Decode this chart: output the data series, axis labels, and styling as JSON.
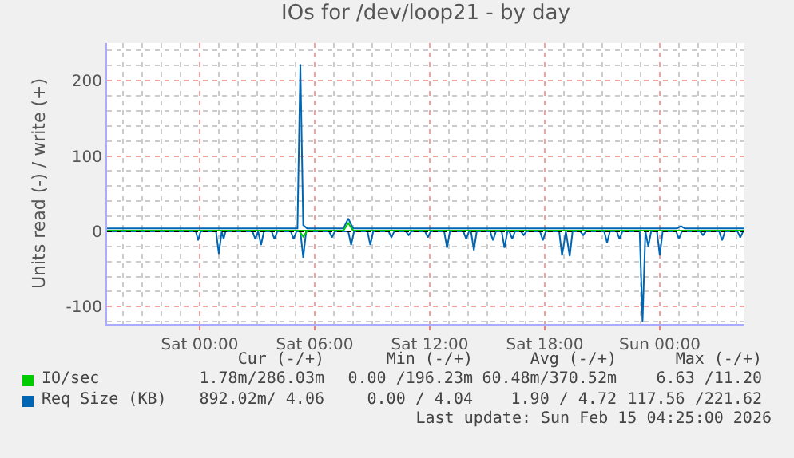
{
  "chart_data": {
    "type": "line",
    "title": "IOs for /dev/loop21 - by day",
    "ylabel": "Units read (-) / write (+)",
    "xlim": [
      "2026-02-13T19:10",
      "2026-02-15T04:25"
    ],
    "xticks": [
      {
        "value": "2026-02-14T00:00",
        "label": "Sat 00:00"
      },
      {
        "value": "2026-02-14T06:00",
        "label": "Sat 06:00"
      },
      {
        "value": "2026-02-14T12:00",
        "label": "Sat 12:00"
      },
      {
        "value": "2026-02-14T18:00",
        "label": "Sat 18:00"
      },
      {
        "value": "2026-02-15T00:00",
        "label": "Sun 00:00"
      }
    ],
    "ylim": [
      -123,
      250
    ],
    "yticks": [
      -100,
      0,
      100,
      200
    ],
    "grid": true,
    "legend": "bottom",
    "line_style": "solid",
    "marker": "none",
    "ref_lines": [
      {
        "axis": "y",
        "value": 0,
        "color": "#000000",
        "line_style": "dotted"
      }
    ],
    "series": [
      {
        "name": "IO/sec",
        "color": "#00cc00",
        "x": [
          "2026-02-13T19:10",
          "2026-02-14T07:30",
          "2026-02-14T07:45",
          "2026-02-14T08:00",
          "2026-02-15T04:25"
        ],
        "values": [
          1,
          1,
          11,
          1,
          1
        ]
      },
      {
        "color": "#00cc00",
        "x": [
          "2026-02-14T05:12",
          "2026-02-14T05:24",
          "2026-02-14T05:36"
        ],
        "values": [
          0,
          -7,
          0
        ]
      },
      {
        "name": "Req Size (KB)",
        "color": "#0066b3",
        "x": [
          "2026-02-13T19:10",
          "2026-02-14T05:06",
          "2026-02-14T05:15",
          "2026-02-14T05:24",
          "2026-02-14T05:36",
          "2026-02-14T07:30",
          "2026-02-14T07:45",
          "2026-02-14T08:00",
          "2026-02-15T00:54",
          "2026-02-15T01:06",
          "2026-02-15T01:18",
          "2026-02-15T04:25"
        ],
        "values": [
          4,
          4,
          222,
          8,
          4,
          4,
          17,
          4,
          4,
          7,
          4,
          4
        ]
      },
      {
        "color": "#0066b3",
        "x": [
          "2026-02-13T19:10",
          "2026-02-13T23:48",
          "2026-02-13T23:55",
          "2026-02-14T00:03",
          "2026-02-14T00:51",
          "2026-02-14T01:00",
          "2026-02-14T01:09",
          "2026-02-14T01:15",
          "2026-02-14T01:21",
          "2026-02-14T02:45",
          "2026-02-14T02:54",
          "2026-02-14T03:03",
          "2026-02-14T03:12",
          "2026-02-14T03:21",
          "2026-02-14T03:45",
          "2026-02-14T03:54",
          "2026-02-14T04:03",
          "2026-02-14T04:45",
          "2026-02-14T04:54",
          "2026-02-14T05:03",
          "2026-02-14T05:15",
          "2026-02-14T05:24",
          "2026-02-14T05:33",
          "2026-02-14T06:45",
          "2026-02-14T06:54",
          "2026-02-14T07:03",
          "2026-02-14T07:45",
          "2026-02-14T07:54",
          "2026-02-14T08:03",
          "2026-02-14T08:45",
          "2026-02-14T08:54",
          "2026-02-14T09:03",
          "2026-02-14T09:51",
          "2026-02-14T10:00",
          "2026-02-14T10:09",
          "2026-02-14T10:45",
          "2026-02-14T10:54",
          "2026-02-14T11:03",
          "2026-02-14T11:45",
          "2026-02-14T11:54",
          "2026-02-14T12:03",
          "2026-02-14T12:45",
          "2026-02-14T12:54",
          "2026-02-14T13:03",
          "2026-02-14T13:45",
          "2026-02-14T13:54",
          "2026-02-14T14:03",
          "2026-02-14T14:09",
          "2026-02-14T14:18",
          "2026-02-14T14:27",
          "2026-02-14T15:09",
          "2026-02-14T15:18",
          "2026-02-14T15:27",
          "2026-02-14T15:45",
          "2026-02-14T15:54",
          "2026-02-14T16:03",
          "2026-02-14T16:09",
          "2026-02-14T16:18",
          "2026-02-14T16:27",
          "2026-02-14T16:45",
          "2026-02-14T16:54",
          "2026-02-14T17:03",
          "2026-02-14T17:45",
          "2026-02-14T17:54",
          "2026-02-14T18:03",
          "2026-02-14T18:45",
          "2026-02-14T18:54",
          "2026-02-14T19:06",
          "2026-02-14T19:18",
          "2026-02-14T19:27",
          "2026-02-14T19:51",
          "2026-02-14T20:00",
          "2026-02-14T20:09",
          "2026-02-14T21:06",
          "2026-02-14T21:15",
          "2026-02-14T21:24",
          "2026-02-14T21:45",
          "2026-02-14T21:54",
          "2026-02-14T22:03",
          "2026-02-14T22:57",
          "2026-02-14T23:06",
          "2026-02-14T23:15",
          "2026-02-14T23:24",
          "2026-02-14T23:33",
          "2026-02-14T23:51",
          "2026-02-15T00:00",
          "2026-02-15T00:09",
          "2026-02-15T00:51",
          "2026-02-15T01:00",
          "2026-02-15T01:09",
          "2026-02-15T02:06",
          "2026-02-15T02:15",
          "2026-02-15T02:24",
          "2026-02-15T03:06",
          "2026-02-15T03:15",
          "2026-02-15T03:24",
          "2026-02-15T04:03",
          "2026-02-15T04:12",
          "2026-02-15T04:21",
          "2026-02-15T04:25"
        ],
        "values": [
          0,
          0,
          -12,
          0,
          0,
          -30,
          0,
          -10,
          0,
          0,
          -10,
          0,
          -18,
          0,
          0,
          -10,
          0,
          0,
          -10,
          0,
          0,
          -35,
          0,
          0,
          -8,
          0,
          0,
          -18,
          0,
          0,
          -18,
          0,
          0,
          -8,
          0,
          0,
          -5,
          0,
          0,
          -8,
          0,
          0,
          -22,
          0,
          0,
          -10,
          0,
          0,
          -25,
          0,
          0,
          -12,
          0,
          0,
          -22,
          0,
          0,
          -10,
          0,
          0,
          -5,
          0,
          0,
          -12,
          0,
          0,
          -32,
          0,
          -33,
          0,
          0,
          -5,
          0,
          0,
          -15,
          0,
          0,
          -10,
          0,
          0,
          -120,
          0,
          -20,
          0,
          0,
          -32,
          0,
          0,
          -10,
          0,
          0,
          -5,
          0,
          0,
          -12,
          0,
          0,
          -8,
          0,
          0
        ]
      }
    ],
    "annotations": [
      "Cur (-/+)",
      "Min (-/+)",
      "Avg (-/+)",
      "Max (-/+)",
      "1.78m/286.03m",
      "0.00 /196.23m",
      "60.48m/370.52m",
      "6.63 /11.20",
      "892.02m/ 4.06",
      "0.00 / 4.04",
      "1.90 / 4.72",
      "117.56 /221.62",
      "Last update: Sun Feb 15 04:25:00 2026"
    ]
  }
}
